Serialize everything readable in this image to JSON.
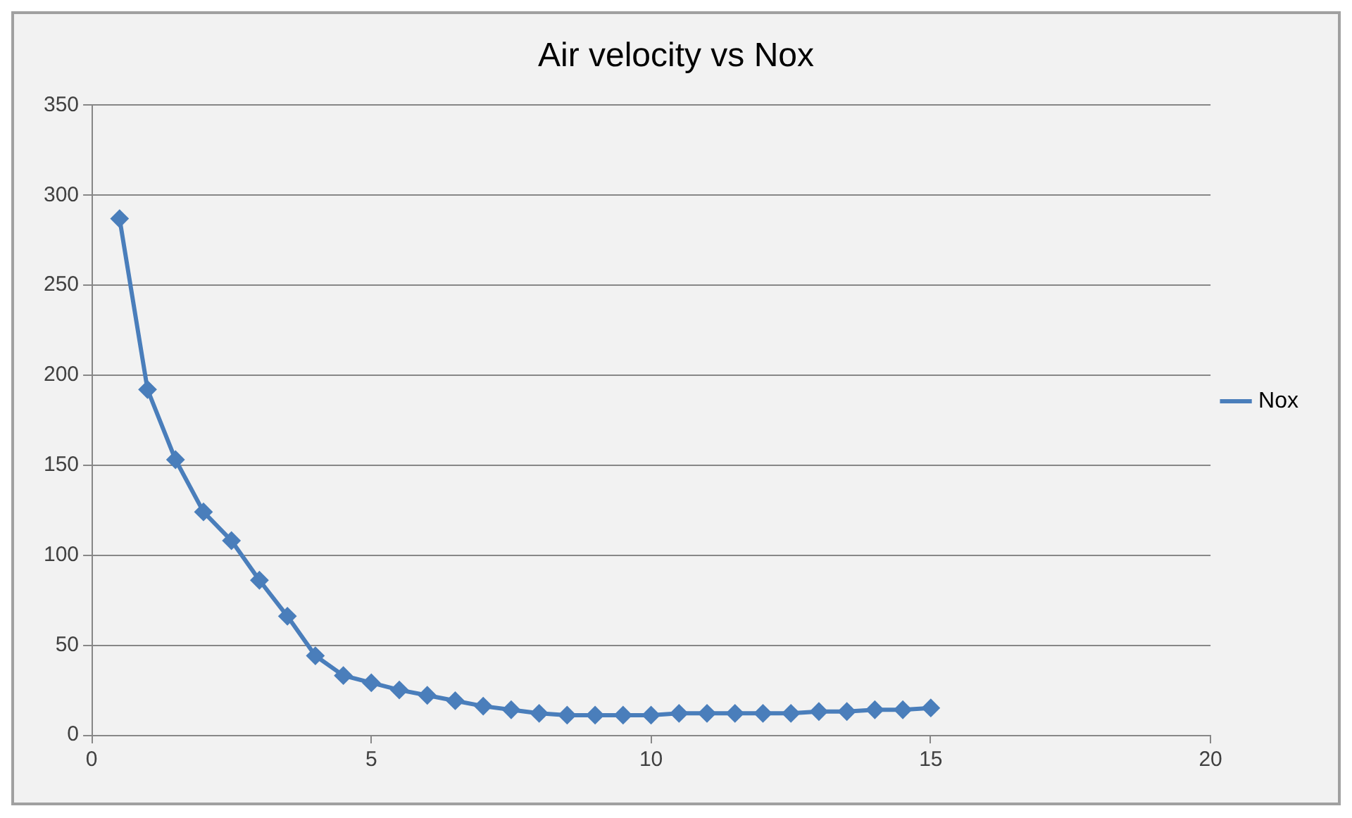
{
  "chart_data": {
    "type": "line",
    "title": "Air velocity vs Nox",
    "x": [
      0.5,
      1,
      1.5,
      2,
      2.5,
      3,
      3.5,
      4,
      4.5,
      5,
      5.5,
      6,
      6.5,
      7,
      7.5,
      8,
      8.5,
      9,
      9.5,
      10,
      10.5,
      11,
      11.5,
      12,
      12.5,
      13,
      13.5,
      14,
      14.5,
      15
    ],
    "series": [
      {
        "name": "Nox",
        "color": "#4a7ebb",
        "values": [
          287,
          192,
          153,
          124,
          108,
          86,
          66,
          44,
          33,
          29,
          25,
          22,
          19,
          16,
          14,
          12,
          11,
          11,
          11,
          11,
          12,
          12,
          12,
          12,
          12,
          13,
          13,
          14,
          14,
          15
        ]
      }
    ],
    "xlim": [
      0,
      20
    ],
    "xticks": [
      0,
      5,
      10,
      15,
      20
    ],
    "ylim": [
      0,
      350
    ],
    "yticks": [
      0,
      50,
      100,
      150,
      200,
      250,
      300,
      350
    ],
    "grid": "y",
    "legend": "right",
    "marker": "diamond",
    "line_style": "solid"
  }
}
